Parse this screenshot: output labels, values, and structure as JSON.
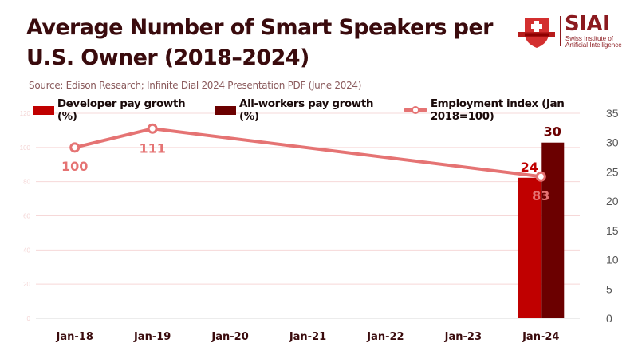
{
  "header": {
    "title": "Average Number of Smart Speakers per U.S. Owner (2018–2024)",
    "source": "Source: Edison Research; Infinite Dial 2024 Presentation PDF (June 2024)"
  },
  "logo": {
    "name": "SIAI",
    "subtitle": "Swiss Institute of\nArtificial Intelligence",
    "icon": "shield-cross-icon"
  },
  "colors": {
    "developer": "#c00000",
    "all_workers": "#6b0000",
    "employment": "#e57373",
    "grid": "#f6d8d8",
    "axis_text_left": "#f4d6d6",
    "axis_text_right": "#555555",
    "category_text": "#3a0b0d"
  },
  "chart_data": {
    "type": "bar",
    "title": "Average Number of Smart Speakers per U.S. Owner (2018–2024)",
    "subtitle": "Source: Edison Research; Infinite Dial 2024 Presentation PDF (June 2024)",
    "categories": [
      "Jan-18",
      "Jan-19",
      "Jan-20",
      "Jan-21",
      "Jan-22",
      "Jan-23",
      "Jan-24"
    ],
    "legend_position": "top-left",
    "grid": true,
    "left_axis": {
      "range": [
        0,
        120
      ],
      "ticks": [
        0,
        20,
        40,
        60,
        80,
        100,
        120
      ]
    },
    "right_axis": {
      "range": [
        0,
        35
      ],
      "ticks": [
        0,
        5,
        10,
        15,
        20,
        25,
        30,
        35
      ]
    },
    "series": [
      {
        "name": "Developer pay growth (%)",
        "type": "bar",
        "axis": "right",
        "values": [
          null,
          null,
          null,
          null,
          null,
          null,
          24
        ],
        "labels": [
          "",
          "",
          "",
          "",
          "",
          "",
          "24"
        ]
      },
      {
        "name": "All-workers pay growth (%)",
        "type": "bar",
        "axis": "right",
        "values": [
          null,
          null,
          null,
          null,
          null,
          null,
          30
        ],
        "labels": [
          "",
          "",
          "",
          "",
          "",
          "",
          "30"
        ]
      },
      {
        "name": "Employment index (Jan 2018=100)",
        "type": "line",
        "axis": "left",
        "x_indices": [
          0,
          1,
          6
        ],
        "values": [
          100,
          111,
          83
        ],
        "labels": [
          "100",
          "111",
          "83"
        ]
      }
    ]
  }
}
